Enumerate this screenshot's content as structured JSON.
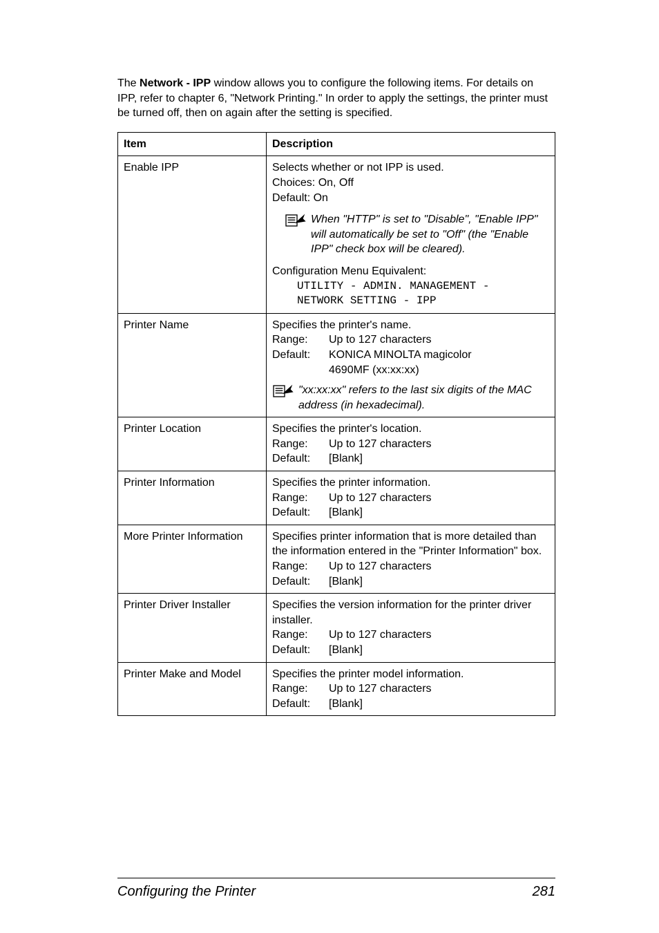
{
  "intro_html": "The <b>Network - IPP</b> window allows you to configure the following items. For details on IPP, refer to chapter 6, \"Network Printing.\"  In order to apply the settings, the printer must be turned off, then on again after the setting is specified.",
  "headers": {
    "item": "Item",
    "desc": "Description"
  },
  "rows": {
    "enable_ipp": {
      "item": "Enable IPP",
      "p1": "Selects whether or not IPP is used.",
      "p2": "Choices: On, Off",
      "p3": "Default: On",
      "note": "When \"HTTP\" is set to \"Disable\", \"Enable IPP\" will automatically be set to \"Off\" (the \"Enable IPP\" check box will be cleared).",
      "p4": "Configuration Menu Equivalent:",
      "mono": "UTILITY - ADMIN. MANAGEMENT -\nNETWORK SETTING - IPP"
    },
    "printer_name": {
      "item": "Printer Name",
      "p1": "Specifies the printer's name.",
      "range_label": "Range:",
      "range_val": "Up to 127 characters",
      "default_label": "Default:",
      "default_val1": "KONICA MINOLTA magicolor",
      "default_val2": "4690MF (xx:xx:xx)",
      "note": "\"xx:xx:xx\" refers to the last six digits of the MAC address (in hexadecimal)."
    },
    "printer_location": {
      "item": "Printer Location",
      "p1": "Specifies the printer's location.",
      "range_label": "Range:",
      "range_val": "Up to 127 characters",
      "default_label": "Default:",
      "default_val": "[Blank]"
    },
    "printer_information": {
      "item": "Printer Information",
      "p1": "Specifies the printer information.",
      "range_label": "Range:",
      "range_val": "Up to 127 characters",
      "default_label": "Default:",
      "default_val": "[Blank]"
    },
    "more_printer_information": {
      "item": "More Printer Information",
      "p1": "Specifies printer information that is more detailed than the information entered in the \"Printer Information\" box.",
      "range_label": "Range:",
      "range_val": "Up to 127 characters",
      "default_label": "Default:",
      "default_val": "[Blank]"
    },
    "printer_driver_installer": {
      "item": "Printer Driver Installer",
      "p1": "Specifies the version information for the printer driver installer.",
      "range_label": "Range:",
      "range_val": "Up to 127 characters",
      "default_label": "Default:",
      "default_val": "[Blank]"
    },
    "printer_make_model": {
      "item": "Printer Make and Model",
      "p1": "Specifies the printer model information.",
      "range_label": "Range:",
      "range_val": "Up to 127 characters",
      "default_label": "Default:",
      "default_val": "[Blank]"
    }
  },
  "footer": {
    "title": "Configuring the Printer",
    "page": "281"
  }
}
